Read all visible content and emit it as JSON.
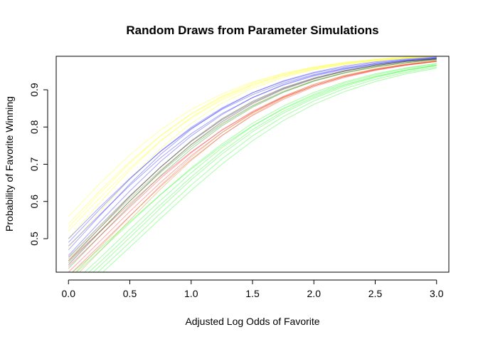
{
  "chart_data": {
    "type": "line",
    "title": "Random Draws from Parameter Simulations",
    "xlabel": "Adjusted Log Odds of Favorite",
    "ylabel": "Probability of Favorite Winning",
    "xlim": [
      0,
      3
    ],
    "ylim": [
      0.41,
      0.99
    ],
    "x_ticks": [
      0.0,
      0.5,
      1.0,
      1.5,
      2.0,
      2.5,
      3.0
    ],
    "x_tick_labels": [
      "0.0",
      "0.5",
      "1.0",
      "1.5",
      "2.0",
      "2.5",
      "3.0"
    ],
    "y_ticks": [
      0.5,
      0.6,
      0.7,
      0.8,
      0.9
    ],
    "y_tick_labels": [
      "0.5",
      "0.6",
      "0.7",
      "0.8",
      "0.9"
    ],
    "grid": false,
    "legend": "none",
    "x": [
      0.0,
      0.25,
      0.5,
      0.75,
      1.0,
      1.25,
      1.5,
      1.75,
      2.0,
      2.25,
      2.5,
      2.75,
      3.0
    ],
    "series": [
      {
        "color": "#ffff00",
        "values": [
          0.53,
          0.62,
          0.703,
          0.776,
          0.836,
          0.883,
          0.918,
          0.943,
          0.961,
          0.973,
          0.982,
          0.988,
          0.992
        ]
      },
      {
        "color": "#ffff00",
        "values": [
          0.56,
          0.646,
          0.725,
          0.792,
          0.847,
          0.889,
          0.921,
          0.944,
          0.961,
          0.973,
          0.981,
          0.987,
          0.991
        ]
      },
      {
        "color": "#ffff00",
        "values": [
          0.5,
          0.595,
          0.684,
          0.762,
          0.826,
          0.876,
          0.913,
          0.94,
          0.959,
          0.972,
          0.981,
          0.987,
          0.991
        ]
      },
      {
        "color": "#ffff00",
        "values": [
          0.54,
          0.627,
          0.707,
          0.777,
          0.835,
          0.88,
          0.914,
          0.939,
          0.957,
          0.97,
          0.979,
          0.985,
          0.99
        ]
      },
      {
        "color": "#ffff00",
        "values": [
          0.52,
          0.608,
          0.69,
          0.763,
          0.824,
          0.872,
          0.909,
          0.936,
          0.955,
          0.969,
          0.978,
          0.985,
          0.99
        ]
      },
      {
        "color": "#ffff00",
        "values": [
          0.475,
          0.57,
          0.661,
          0.742,
          0.81,
          0.864,
          0.904,
          0.933,
          0.954,
          0.968,
          0.978,
          0.985,
          0.99
        ]
      },
      {
        "color": "#0000ff",
        "values": [
          0.5,
          0.583,
          0.662,
          0.734,
          0.796,
          0.847,
          0.887,
          0.918,
          0.941,
          0.958,
          0.97,
          0.979,
          0.985
        ]
      },
      {
        "color": "#0000ff",
        "values": [
          0.47,
          0.56,
          0.647,
          0.726,
          0.794,
          0.849,
          0.892,
          0.924,
          0.947,
          0.964,
          0.975,
          0.983,
          0.988
        ]
      },
      {
        "color": "#0000ff",
        "values": [
          0.48,
          0.563,
          0.643,
          0.717,
          0.782,
          0.836,
          0.879,
          0.912,
          0.937,
          0.955,
          0.968,
          0.978,
          0.984
        ]
      },
      {
        "color": "#0000ff",
        "values": [
          0.455,
          0.543,
          0.628,
          0.707,
          0.776,
          0.833,
          0.879,
          0.914,
          0.939,
          0.957,
          0.97,
          0.98,
          0.986
        ]
      },
      {
        "color": "#0000ff",
        "values": [
          0.49,
          0.577,
          0.66,
          0.735,
          0.799,
          0.851,
          0.892,
          0.922,
          0.945,
          0.961,
          0.973,
          0.981,
          0.987
        ]
      },
      {
        "color": "#000000",
        "values": [
          0.45,
          0.533,
          0.615,
          0.692,
          0.761,
          0.819,
          0.866,
          0.903,
          0.93,
          0.95,
          0.965,
          0.976,
          0.983
        ]
      },
      {
        "color": "#000000",
        "values": [
          0.43,
          0.516,
          0.601,
          0.681,
          0.753,
          0.814,
          0.863,
          0.901,
          0.929,
          0.95,
          0.965,
          0.976,
          0.983
        ]
      },
      {
        "color": "#000000",
        "values": [
          0.44,
          0.527,
          0.613,
          0.692,
          0.763,
          0.822,
          0.869,
          0.905,
          0.932,
          0.952,
          0.967,
          0.977,
          0.984
        ]
      },
      {
        "color": "#008000",
        "values": [
          0.435,
          0.518,
          0.601,
          0.678,
          0.747,
          0.807,
          0.856,
          0.894,
          0.924,
          0.946,
          0.962,
          0.973,
          0.981
        ]
      },
      {
        "color": "#008000",
        "values": [
          0.42,
          0.505,
          0.589,
          0.669,
          0.741,
          0.803,
          0.853,
          0.893,
          0.923,
          0.945,
          0.961,
          0.973,
          0.981
        ]
      },
      {
        "color": "#808000",
        "values": [
          0.445,
          0.527,
          0.608,
          0.684,
          0.752,
          0.81,
          0.858,
          0.896,
          0.925,
          0.946,
          0.962,
          0.973,
          0.981
        ]
      },
      {
        "color": "#ff0000",
        "values": [
          0.44,
          0.517,
          0.594,
          0.667,
          0.733,
          0.791,
          0.84,
          0.88,
          0.911,
          0.935,
          0.953,
          0.966,
          0.976
        ]
      },
      {
        "color": "#ff0000",
        "values": [
          0.425,
          0.505,
          0.585,
          0.662,
          0.731,
          0.792,
          0.842,
          0.882,
          0.914,
          0.938,
          0.955,
          0.968,
          0.977
        ]
      },
      {
        "color": "#ff0000",
        "values": [
          0.41,
          0.491,
          0.573,
          0.651,
          0.723,
          0.785,
          0.837,
          0.879,
          0.911,
          0.936,
          0.954,
          0.967,
          0.977
        ]
      },
      {
        "color": "#ff0000",
        "values": [
          0.4,
          0.48,
          0.561,
          0.64,
          0.713,
          0.777,
          0.831,
          0.874,
          0.908,
          0.933,
          0.952,
          0.966,
          0.976
        ]
      },
      {
        "color": "#c87800",
        "values": [
          0.39,
          0.475,
          0.56,
          0.643,
          0.719,
          0.785,
          0.839,
          0.882,
          0.915,
          0.939,
          0.957,
          0.97,
          0.979
        ]
      },
      {
        "color": "#c87800",
        "values": [
          0.38,
          0.464,
          0.55,
          0.633,
          0.71,
          0.777,
          0.833,
          0.877,
          0.911,
          0.936,
          0.955,
          0.968,
          0.977
        ]
      },
      {
        "color": "#00ff00",
        "values": [
          0.39,
          0.465,
          0.542,
          0.618,
          0.69,
          0.754,
          0.81,
          0.856,
          0.893,
          0.921,
          0.943,
          0.959,
          0.971
        ]
      },
      {
        "color": "#00ff00",
        "values": [
          0.37,
          0.446,
          0.525,
          0.603,
          0.677,
          0.744,
          0.802,
          0.85,
          0.888,
          0.918,
          0.94,
          0.957,
          0.969
        ]
      },
      {
        "color": "#00ff00",
        "values": [
          0.36,
          0.435,
          0.513,
          0.591,
          0.666,
          0.734,
          0.793,
          0.842,
          0.881,
          0.912,
          0.935,
          0.953,
          0.966
        ]
      },
      {
        "color": "#00ff00",
        "values": [
          0.35,
          0.425,
          0.503,
          0.582,
          0.658,
          0.727,
          0.787,
          0.837,
          0.877,
          0.909,
          0.933,
          0.951,
          0.965
        ]
      },
      {
        "color": "#00ff00",
        "values": [
          0.34,
          0.413,
          0.49,
          0.568,
          0.644,
          0.714,
          0.776,
          0.828,
          0.87,
          0.903,
          0.928,
          0.947,
          0.961
        ]
      },
      {
        "color": "#00ff00",
        "values": [
          0.4,
          0.472,
          0.546,
          0.618,
          0.687,
          0.749,
          0.803,
          0.848,
          0.885,
          0.914,
          0.936,
          0.953,
          0.966
        ]
      },
      {
        "color": "#00ff00",
        "values": [
          0.33,
          0.401,
          0.477,
          0.554,
          0.63,
          0.7,
          0.763,
          0.817,
          0.861,
          0.895,
          0.922,
          0.943,
          0.958
        ]
      }
    ]
  }
}
